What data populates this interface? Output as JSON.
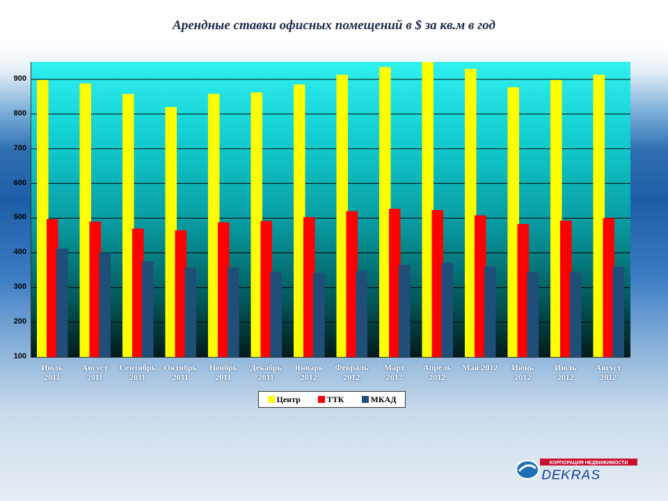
{
  "chart_data": {
    "type": "bar",
    "title": "Арендные ставки офисных помещений в $ за кв.м в год",
    "categories": [
      [
        "Июль",
        "2011"
      ],
      [
        "Август",
        "2011"
      ],
      [
        "Сентябрь",
        "2011"
      ],
      [
        "Октябрь",
        "2011"
      ],
      [
        "Ноябрь",
        "2011"
      ],
      [
        "Декабрь",
        "2011"
      ],
      [
        "Январь",
        "2012"
      ],
      [
        "Февраль",
        "2012"
      ],
      [
        "Март",
        "2012"
      ],
      [
        "Апрель",
        "2012"
      ],
      [
        "Май 2012",
        ""
      ],
      [
        "Июнь",
        "2012"
      ],
      [
        "Июль",
        "2012"
      ],
      [
        "Август",
        "2012"
      ]
    ],
    "series": [
      {
        "name": "Центр",
        "color": "#ffff00",
        "values": [
          898,
          888,
          858,
          820,
          858,
          862,
          885,
          913,
          935,
          953,
          930,
          877,
          898,
          913
        ]
      },
      {
        "name": "ТТК",
        "color": "#ff0000",
        "values": [
          497,
          490,
          470,
          465,
          488,
          492,
          503,
          520,
          527,
          523,
          508,
          483,
          493,
          500
        ]
      },
      {
        "name": "МКАД",
        "color": "#1f4e79",
        "values": [
          412,
          400,
          375,
          358,
          358,
          346,
          342,
          348,
          365,
          372,
          360,
          344,
          344,
          360
        ]
      }
    ],
    "ylim": [
      100,
      950
    ],
    "yticks": [
      100,
      200,
      300,
      400,
      500,
      600,
      700,
      800,
      900
    ],
    "grid": true,
    "legend_position": "bottom"
  },
  "logo": {
    "name": "DEKRAS",
    "tagline": "КОРПОРАЦИЯ НЕДВИЖИМОСТИ"
  }
}
